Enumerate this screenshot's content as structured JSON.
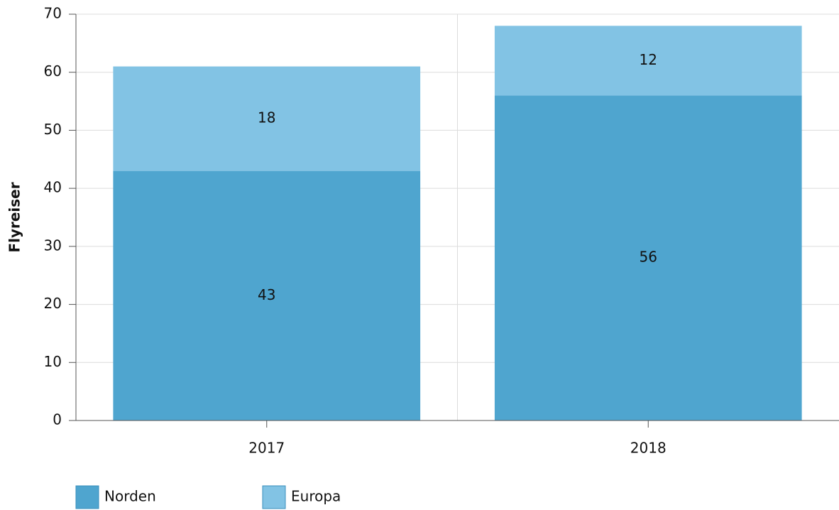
{
  "chart_data": {
    "type": "bar",
    "stacked": true,
    "y_label": "Flyreiser",
    "categories": [
      "2017",
      "2018"
    ],
    "series": [
      {
        "name": "Norden",
        "color": "#4fa5cf",
        "values": [
          43,
          56
        ]
      },
      {
        "name": "Europa",
        "color": "#82c3e4",
        "values": [
          18,
          12
        ]
      }
    ],
    "ylim": [
      0,
      70
    ],
    "yticks": [
      0,
      10,
      20,
      30,
      40,
      50,
      60,
      70
    ],
    "grid": true,
    "legend": "bottom-left"
  }
}
